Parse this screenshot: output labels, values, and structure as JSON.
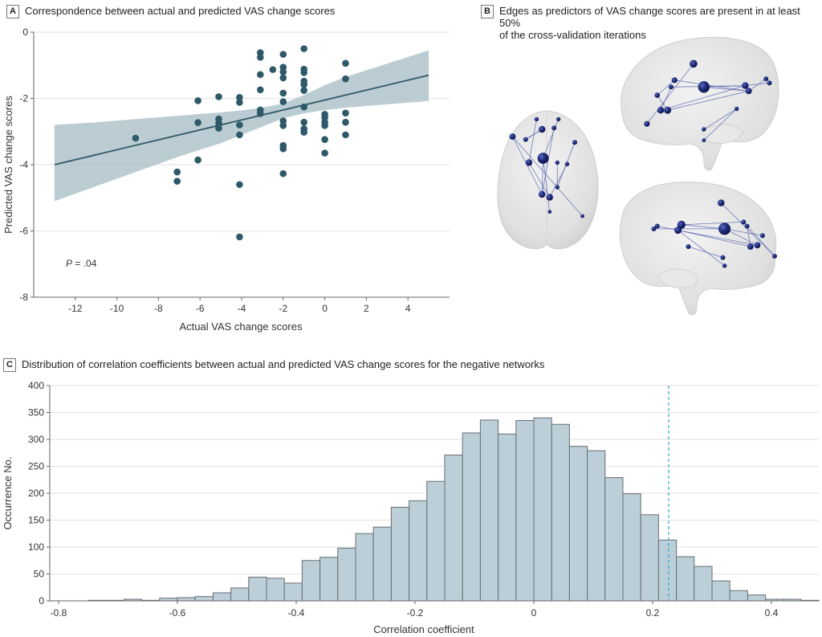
{
  "panels": {
    "a": {
      "letter": "A",
      "title": "Correspondence between actual and predicted VAS change scores"
    },
    "b": {
      "letter": "B",
      "title_line1": "Edges as predictors of VAS change scores are present in at least 50%",
      "title_line2": "of the cross-validation iterations"
    },
    "c": {
      "letter": "C",
      "title": "Distribution of correlation coefficients between actual and predicted VAS change scores for the negative networks"
    }
  },
  "colors": {
    "point": "#2d5968",
    "band": "#b4c6cd",
    "bar_fill": "#bccfd8",
    "bar_stroke": "#666d72",
    "grid": "#e2e2e2",
    "dashed": "#2aa8dc",
    "node": "#1e2a78",
    "edge": "#5a68b0",
    "brain": "#e4e4e4"
  },
  "chart_data": [
    {
      "type": "scatter",
      "title": "Correspondence between actual and predicted VAS change scores",
      "xlabel": "Actual VAS change scores",
      "ylabel": "Predicted VAS change scores",
      "xlim": [
        -14,
        6
      ],
      "ylim": [
        -8,
        0
      ],
      "xticks": [
        -12,
        -10,
        -8,
        -6,
        -4,
        -2,
        0,
        2,
        4
      ],
      "yticks": [
        0,
        -2,
        -4,
        -6,
        -8
      ],
      "grid": "horizontal",
      "annotation": {
        "label_italic": "P",
        "label_rest": " = .04"
      },
      "fit_line": {
        "x": [
          -13,
          5
        ],
        "y": [
          -4.0,
          -1.3
        ]
      },
      "ci_band": {
        "x": [
          -13,
          -11,
          -9,
          -7,
          -5,
          -4,
          -3,
          -2,
          -1,
          0,
          1,
          3,
          5
        ],
        "upper": [
          -2.8,
          -2.72,
          -2.62,
          -2.52,
          -2.42,
          -2.36,
          -2.28,
          -2.15,
          -1.9,
          -1.6,
          -1.35,
          -0.95,
          -0.55
        ],
        "lower": [
          -5.1,
          -4.65,
          -4.2,
          -3.75,
          -3.35,
          -3.1,
          -2.85,
          -2.6,
          -2.45,
          -2.35,
          -2.28,
          -2.18,
          -2.08
        ]
      },
      "points": [
        {
          "x": -9.1,
          "y": -3.2
        },
        {
          "x": -7.1,
          "y": -4.22
        },
        {
          "x": -7.1,
          "y": -4.5
        },
        {
          "x": -6.1,
          "y": -2.07
        },
        {
          "x": -6.1,
          "y": -2.73
        },
        {
          "x": -6.1,
          "y": -3.86
        },
        {
          "x": -5.1,
          "y": -1.95
        },
        {
          "x": -5.1,
          "y": -2.62
        },
        {
          "x": -5.1,
          "y": -2.75
        },
        {
          "x": -5.1,
          "y": -2.9
        },
        {
          "x": -4.1,
          "y": -1.97
        },
        {
          "x": -4.1,
          "y": -2.12
        },
        {
          "x": -4.1,
          "y": -2.8
        },
        {
          "x": -4.1,
          "y": -3.1
        },
        {
          "x": -4.1,
          "y": -4.6
        },
        {
          "x": -4.1,
          "y": -6.18
        },
        {
          "x": -3.1,
          "y": -0.62
        },
        {
          "x": -3.1,
          "y": -0.76
        },
        {
          "x": -3.1,
          "y": -1.28
        },
        {
          "x": -3.1,
          "y": -1.74
        },
        {
          "x": -3.1,
          "y": -2.35
        },
        {
          "x": -3.1,
          "y": -2.46
        },
        {
          "x": -2.5,
          "y": -1.13
        },
        {
          "x": -2.0,
          "y": -0.67
        },
        {
          "x": -2.0,
          "y": -1.06
        },
        {
          "x": -2.0,
          "y": -1.2
        },
        {
          "x": -2.0,
          "y": -1.38
        },
        {
          "x": -2.0,
          "y": -1.84
        },
        {
          "x": -2.0,
          "y": -2.1
        },
        {
          "x": -2.0,
          "y": -2.68
        },
        {
          "x": -2.0,
          "y": -2.82
        },
        {
          "x": -2.0,
          "y": -3.42
        },
        {
          "x": -2.0,
          "y": -3.52
        },
        {
          "x": -2.0,
          "y": -4.27
        },
        {
          "x": -1.0,
          "y": -0.5
        },
        {
          "x": -1.0,
          "y": -1.12
        },
        {
          "x": -1.0,
          "y": -1.22
        },
        {
          "x": -1.0,
          "y": -1.48
        },
        {
          "x": -1.0,
          "y": -1.58
        },
        {
          "x": -1.0,
          "y": -1.76
        },
        {
          "x": -1.0,
          "y": -2.26
        },
        {
          "x": -1.0,
          "y": -2.72
        },
        {
          "x": -1.0,
          "y": -2.92
        },
        {
          "x": -1.0,
          "y": -3.02
        },
        {
          "x": 0.0,
          "y": -2.48
        },
        {
          "x": 0.0,
          "y": -2.58
        },
        {
          "x": 0.0,
          "y": -2.72
        },
        {
          "x": 0.0,
          "y": -2.82
        },
        {
          "x": 0.0,
          "y": -3.24
        },
        {
          "x": 0.0,
          "y": -3.65
        },
        {
          "x": 1.0,
          "y": -0.94
        },
        {
          "x": 1.0,
          "y": -1.41
        },
        {
          "x": 1.0,
          "y": -2.44
        },
        {
          "x": 1.0,
          "y": -2.72
        },
        {
          "x": 1.0,
          "y": -3.1
        }
      ]
    },
    {
      "type": "bar",
      "subtype": "histogram",
      "title": "Distribution of correlation coefficients between actual and predicted VAS change scores for the negative networks",
      "xlabel": "Correlation coefficient",
      "ylabel": "Occurrence No.",
      "xlim": [
        -0.84,
        0.48
      ],
      "ylim": [
        0,
        400
      ],
      "xticks": [
        -0.8,
        -0.6,
        -0.4,
        -0.2,
        0,
        0.2,
        0.4
      ],
      "xtick_labels": [
        "-0.8",
        "-0.6",
        "-0.4",
        "-0.2",
        "0",
        "0.2",
        "0.4"
      ],
      "yticks": [
        0,
        50,
        100,
        150,
        200,
        250,
        300,
        350,
        400
      ],
      "grid": "horizontal",
      "bin_start": -0.75,
      "bin_width": 0.03,
      "values": [
        1,
        1,
        3,
        1,
        5,
        6,
        8,
        15,
        24,
        44,
        42,
        33,
        75,
        81,
        98,
        125,
        137,
        174,
        186,
        222,
        271,
        312,
        336,
        310,
        335,
        340,
        328,
        287,
        279,
        229,
        199,
        160,
        113,
        82,
        64,
        37,
        19,
        11,
        3,
        3,
        1
      ],
      "reference_line": {
        "x": 0.227,
        "style": "dashed"
      }
    }
  ],
  "brain_views": {
    "sagittal_top": {
      "nodes": [
        {
          "u": 0.46,
          "v": 0.22,
          "r": 0.8
        },
        {
          "u": 0.35,
          "v": 0.34,
          "r": 0.6
        },
        {
          "u": 0.33,
          "v": 0.39,
          "r": 0.5
        },
        {
          "u": 0.52,
          "v": 0.39,
          "r": 1.2
        },
        {
          "u": 0.25,
          "v": 0.45,
          "r": 0.55
        },
        {
          "u": 0.27,
          "v": 0.56,
          "r": 0.7
        },
        {
          "u": 0.31,
          "v": 0.56,
          "r": 0.75
        },
        {
          "u": 0.19,
          "v": 0.66,
          "r": 0.6
        },
        {
          "u": 0.76,
          "v": 0.38,
          "r": 0.7
        },
        {
          "u": 0.78,
          "v": 0.42,
          "r": 0.65
        },
        {
          "u": 0.88,
          "v": 0.33,
          "r": 0.5
        },
        {
          "u": 0.9,
          "v": 0.36,
          "r": 0.5
        },
        {
          "u": 0.71,
          "v": 0.55,
          "r": 0.45
        },
        {
          "u": 0.52,
          "v": 0.7,
          "r": 0.45
        },
        {
          "u": 0.52,
          "v": 0.78,
          "r": 0.4
        }
      ],
      "edges": [
        [
          0,
          7
        ],
        [
          3,
          8
        ],
        [
          3,
          9
        ],
        [
          1,
          9
        ],
        [
          2,
          8
        ],
        [
          5,
          8
        ],
        [
          6,
          9
        ],
        [
          4,
          6
        ],
        [
          10,
          9
        ],
        [
          11,
          8
        ],
        [
          12,
          14
        ],
        [
          13,
          12
        ],
        [
          2,
          5
        ],
        [
          1,
          4
        ]
      ]
    },
    "axial": {
      "nodes": [
        {
          "u": 0.4,
          "v": 0.08,
          "r": 0.45
        },
        {
          "u": 0.6,
          "v": 0.08,
          "r": 0.45
        },
        {
          "u": 0.45,
          "v": 0.15,
          "r": 0.7
        },
        {
          "u": 0.56,
          "v": 0.14,
          "r": 0.5
        },
        {
          "u": 0.18,
          "v": 0.2,
          "r": 0.65
        },
        {
          "u": 0.3,
          "v": 0.22,
          "r": 0.5
        },
        {
          "u": 0.75,
          "v": 0.24,
          "r": 0.5
        },
        {
          "u": 0.33,
          "v": 0.38,
          "r": 0.7
        },
        {
          "u": 0.46,
          "v": 0.35,
          "r": 1.15
        },
        {
          "u": 0.59,
          "v": 0.38,
          "r": 0.45
        },
        {
          "u": 0.68,
          "v": 0.39,
          "r": 0.45
        },
        {
          "u": 0.45,
          "v": 0.6,
          "r": 0.7
        },
        {
          "u": 0.52,
          "v": 0.62,
          "r": 0.7
        },
        {
          "u": 0.59,
          "v": 0.55,
          "r": 0.45
        },
        {
          "u": 0.52,
          "v": 0.72,
          "r": 0.4
        },
        {
          "u": 0.82,
          "v": 0.75,
          "r": 0.4
        }
      ],
      "edges": [
        [
          4,
          11
        ],
        [
          4,
          15
        ],
        [
          0,
          7
        ],
        [
          2,
          5
        ],
        [
          3,
          11
        ],
        [
          1,
          8
        ],
        [
          8,
          11
        ],
        [
          7,
          12
        ],
        [
          6,
          13
        ],
        [
          10,
          12
        ],
        [
          5,
          2
        ],
        [
          8,
          14
        ],
        [
          9,
          13
        ]
      ]
    },
    "sagittal_bottom": {
      "nodes": [
        {
          "u": 0.23,
          "v": 0.37,
          "r": 0.5
        },
        {
          "u": 0.25,
          "v": 0.35,
          "r": 0.5
        },
        {
          "u": 0.39,
          "v": 0.34,
          "r": 0.85
        },
        {
          "u": 0.37,
          "v": 0.38,
          "r": 0.75
        },
        {
          "u": 0.64,
          "v": 0.37,
          "r": 1.25
        },
        {
          "u": 0.62,
          "v": 0.18,
          "r": 0.7
        },
        {
          "u": 0.75,
          "v": 0.32,
          "r": 0.5
        },
        {
          "u": 0.77,
          "v": 0.35,
          "r": 0.5
        },
        {
          "u": 0.86,
          "v": 0.42,
          "r": 0.5
        },
        {
          "u": 0.79,
          "v": 0.5,
          "r": 0.65
        },
        {
          "u": 0.83,
          "v": 0.49,
          "r": 0.65
        },
        {
          "u": 0.93,
          "v": 0.57,
          "r": 0.5
        },
        {
          "u": 0.43,
          "v": 0.5,
          "r": 0.5
        },
        {
          "u": 0.63,
          "v": 0.58,
          "r": 0.5
        },
        {
          "u": 0.64,
          "v": 0.64,
          "r": 0.45
        }
      ],
      "edges": [
        [
          0,
          4
        ],
        [
          1,
          3
        ],
        [
          2,
          4
        ],
        [
          3,
          9
        ],
        [
          3,
          10
        ],
        [
          2,
          6
        ],
        [
          5,
          11
        ],
        [
          4,
          8
        ],
        [
          4,
          10
        ],
        [
          7,
          9
        ],
        [
          12,
          13
        ],
        [
          3,
          14
        ],
        [
          6,
          11
        ]
      ]
    }
  }
}
